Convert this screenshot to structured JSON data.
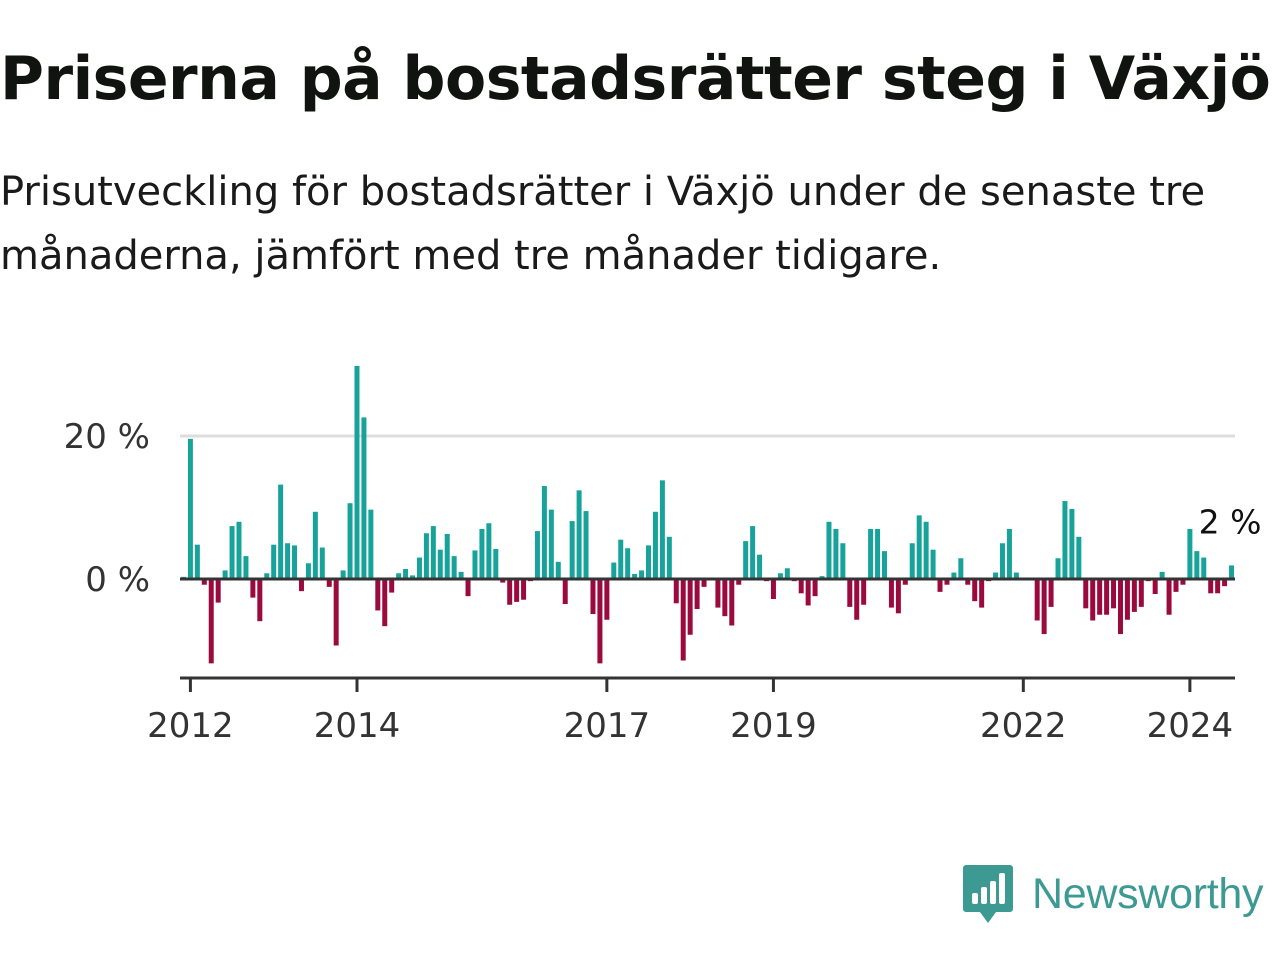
{
  "header": {
    "title": "Priserna på bostadsrätter steg i Växjö",
    "subtitle": "Prisutveckling för bostadsrätter i Växjö under de senaste tre månaderna, jämfört med tre månader tidigare."
  },
  "logo": {
    "text": "Newsworthy",
    "icon": "newsworthy-logo-icon",
    "color": "#3d9a92"
  },
  "chart_data": {
    "type": "bar",
    "start": "2011-12",
    "x_tick_labels": [
      "2012",
      "2014",
      "2017",
      "2019",
      "2022",
      "2024"
    ],
    "y_tick_labels": [
      "0 %",
      "20 %"
    ],
    "ylim": [
      -14,
      30
    ],
    "grid": true,
    "colors": {
      "positive": "#17a39a",
      "negative": "#9b0a3d",
      "grid": "#dddddd",
      "axis": "#333333"
    },
    "last_value_label": "2 %",
    "values": [
      0.3,
      19.6,
      4.8,
      -0.8,
      -11.8,
      -3.3,
      1.2,
      7.4,
      8.0,
      3.2,
      -2.6,
      -5.9,
      0.8,
      4.8,
      13.2,
      5.0,
      4.7,
      -1.7,
      2.2,
      9.4,
      4.4,
      -1.1,
      -9.3,
      1.2,
      10.6,
      29.8,
      22.6,
      9.7,
      -4.4,
      -6.6,
      -1.9,
      0.8,
      1.4,
      0.5,
      3.0,
      6.4,
      7.4,
      4.1,
      6.3,
      3.2,
      1.0,
      -2.4,
      4.0,
      7.0,
      7.8,
      4.2,
      -0.5,
      -3.6,
      -3.2,
      -2.9,
      -0.3,
      6.7,
      13.0,
      9.7,
      2.4,
      -3.5,
      8.1,
      12.4,
      9.5,
      -4.9,
      -11.8,
      -5.7,
      2.3,
      5.5,
      4.3,
      0.7,
      1.2,
      4.7,
      9.4,
      13.8,
      5.9,
      -3.4,
      -11.4,
      -7.8,
      -4.2,
      -1.1,
      0.2,
      -4.0,
      -5.2,
      -6.5,
      -0.8,
      5.3,
      7.4,
      3.4,
      -0.3,
      -2.8,
      0.8,
      1.5,
      -0.3,
      -2.0,
      -3.7,
      -2.4,
      0.4,
      8.0,
      7.0,
      5.0,
      -3.9,
      -5.7,
      -3.6,
      7.0,
      7.0,
      3.9,
      -4.0,
      -4.8,
      -0.8,
      5.0,
      8.9,
      8.0,
      4.1,
      -1.8,
      -0.8,
      0.9,
      2.9,
      -0.8,
      -3.1,
      -4.0,
      -0.3,
      0.9,
      5.0,
      7.0,
      0.9,
      -0.2,
      -0.2,
      -5.8,
      -7.7,
      -3.9,
      2.9,
      10.9,
      9.8,
      5.9,
      -4.1,
      -5.8,
      -5.0,
      -5.0,
      -4.1,
      -7.7,
      -5.7,
      -4.6,
      -3.9,
      -0.3,
      -2.1,
      1.0,
      -5.0,
      -1.8,
      -0.8,
      7.0,
      3.9,
      3.0,
      -2.0,
      -2.0,
      -1.0,
      1.9
    ]
  }
}
